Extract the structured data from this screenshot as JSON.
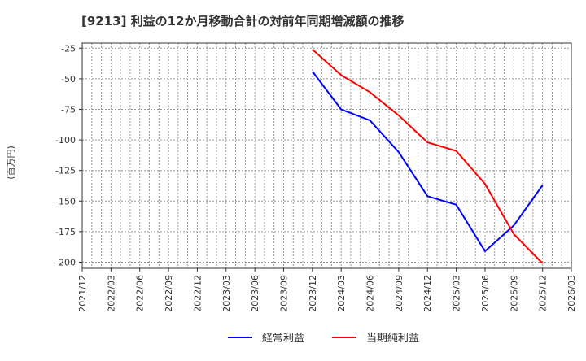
{
  "chart_data": {
    "type": "line",
    "title": "[9213]  利益の12か月移動合計の対前年同期増減額の推移",
    "ylabel": "(百万円)",
    "xlabel": "",
    "ylim": [
      -205,
      -22
    ],
    "yticks": [
      -25,
      -50,
      -75,
      -100,
      -125,
      -150,
      -175,
      -200
    ],
    "xticks": [
      "2021/12",
      "2022/03",
      "2022/06",
      "2022/09",
      "2022/12",
      "2023/03",
      "2023/06",
      "2023/09",
      "2023/12",
      "2024/03",
      "2024/06",
      "2024/09",
      "2024/12",
      "2025/03",
      "2025/06",
      "2025/09",
      "2025/12",
      "2026/03"
    ],
    "x": [
      "2023/12",
      "2024/03",
      "2024/06",
      "2024/09",
      "2024/12",
      "2025/03",
      "2025/06",
      "2025/09",
      "2025/12"
    ],
    "grid": true,
    "legend_position": "bottom",
    "series": [
      {
        "name": "経常利益",
        "color": "#0000ff",
        "values": [
          -44,
          -75,
          -84,
          -110,
          -146,
          -153,
          -191,
          -170,
          -137
        ]
      },
      {
        "name": "当期純利益",
        "color": "#ff0000",
        "values": [
          -26,
          -47,
          -61,
          -80,
          -102,
          -109,
          -136,
          -177,
          -201
        ]
      }
    ]
  }
}
